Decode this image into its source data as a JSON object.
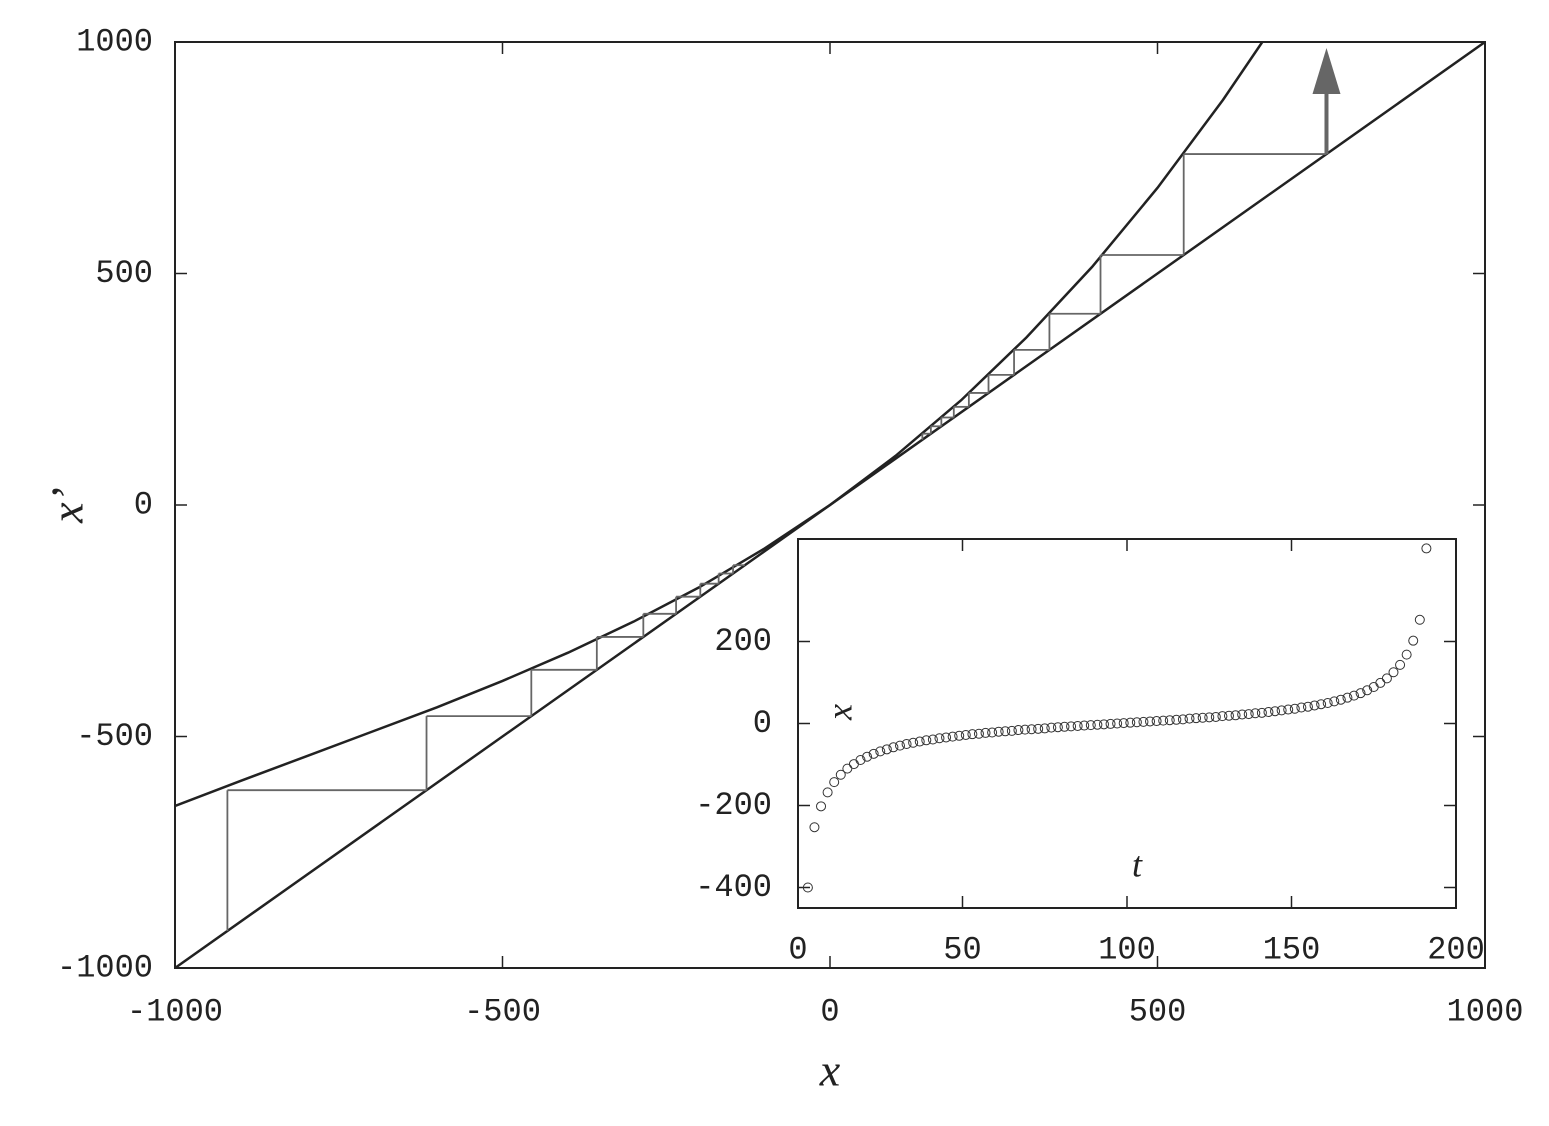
{
  "chart_data": [
    {
      "type": "line",
      "x_label": "x",
      "y_label": "x’",
      "xlim": [
        -1000,
        1000
      ],
      "ylim": [
        -1000,
        1000
      ],
      "xticks": [
        -1000,
        -500,
        0,
        500,
        1000
      ],
      "yticks": [
        -1000,
        -500,
        0,
        500,
        1000
      ],
      "series": [
        {
          "color": "#222222",
          "x": [
            -1000,
            -900,
            -800,
            -700,
            -600,
            -500,
            -400,
            -300,
            -200,
            -100,
            0,
            100,
            200,
            300,
            400,
            500,
            600,
            660
          ],
          "values": [
            -650,
            -596,
            -543,
            -490,
            -437,
            -380,
            -319,
            -252,
            -178,
            -94,
            0,
            106,
            226,
            362,
            514,
            685,
            875,
            1000
          ]
        },
        {
          "color": "#222222",
          "x": [
            -1000,
            1000
          ],
          "values": [
            -1000,
            1000
          ]
        }
      ],
      "cobweb": [
        {
          "color": "#666666",
          "iterates": [
            -920,
            -616,
            -456,
            -356,
            -285,
            -235,
            -198,
            -170,
            -148,
            -130
          ]
        },
        {
          "color": "#666666",
          "iterates": [
            141,
            154,
            170,
            189,
            212,
            242,
            281,
            335,
            413,
            540,
            758
          ]
        }
      ],
      "arrow_color": "#666666"
    },
    {
      "type": "scatter",
      "x_label": "t",
      "y_label": "x",
      "xlim": [
        0,
        200
      ],
      "ylim": [
        -450,
        450
      ],
      "xticks": [
        0,
        50,
        100,
        150,
        200
      ],
      "yticks": [
        -400,
        -200,
        0,
        200
      ],
      "color": "#333333",
      "x": [
        3,
        5,
        7,
        9,
        11,
        13,
        15,
        17,
        19,
        21,
        23,
        25,
        27,
        29,
        31,
        33,
        35,
        37,
        39,
        41,
        43,
        45,
        47,
        49,
        51,
        53,
        55,
        57,
        59,
        61,
        63,
        65,
        67,
        69,
        71,
        73,
        75,
        77,
        79,
        81,
        83,
        85,
        87,
        89,
        91,
        93,
        95,
        97,
        99,
        101,
        103,
        105,
        107,
        109,
        111,
        113,
        115,
        117,
        119,
        121,
        123,
        125,
        127,
        129,
        131,
        133,
        135,
        137,
        139,
        141,
        143,
        145,
        147,
        149,
        151,
        153,
        155,
        157,
        159,
        161,
        163,
        165,
        167,
        169,
        171,
        173,
        175,
        177,
        179,
        181,
        183,
        185,
        187,
        189,
        191
      ],
      "values": [
        -400,
        -253,
        -202,
        -168,
        -143,
        -125,
        -110,
        -99,
        -89,
        -81,
        -74,
        -68,
        -63,
        -58,
        -54,
        -50,
        -47,
        -44,
        -41,
        -39,
        -36,
        -34,
        -32,
        -30,
        -28,
        -26,
        -25,
        -23,
        -22,
        -20,
        -19,
        -18,
        -16,
        -15,
        -14,
        -13,
        -12,
        -10,
        -9,
        -8,
        -7,
        -6,
        -5,
        -4,
        -3,
        -2,
        -1,
        0,
        1,
        2,
        3,
        4,
        5,
        6,
        7,
        8,
        9,
        10,
        12,
        13,
        14,
        15,
        16,
        18,
        19,
        20,
        22,
        23,
        25,
        26,
        28,
        30,
        32,
        34,
        36,
        39,
        41,
        44,
        47,
        50,
        54,
        58,
        63,
        68,
        74,
        81,
        89,
        99,
        110,
        125,
        143,
        168,
        202,
        253,
        427
      ]
    }
  ]
}
